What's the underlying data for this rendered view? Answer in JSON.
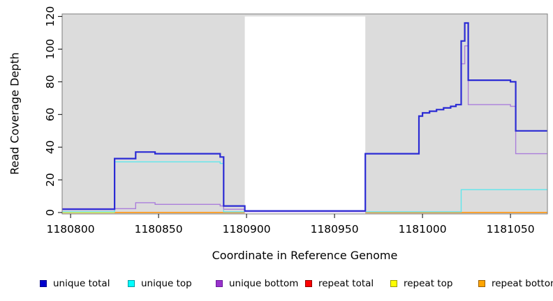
{
  "chart_data": {
    "type": "line",
    "subtype": "step",
    "title": "",
    "xlabel": "Coordinate in Reference Genome",
    "ylabel": "Read Coverage Depth",
    "xlim": [
      1180795.2,
      1181071
    ],
    "ylim": [
      0,
      121.5
    ],
    "x_ticks": [
      1180800,
      1180850,
      1180900,
      1180950,
      1181000,
      1181050
    ],
    "y_ticks": [
      0,
      20,
      40,
      60,
      80,
      100,
      120
    ],
    "grid": "off",
    "panel_bg": "#dcdcdc",
    "masked_region": {
      "x0": 1180899,
      "x1": 1180967.5,
      "y_top": 120,
      "fill": "#ffffff"
    },
    "legend_position": "bottom",
    "series": [
      {
        "name": "repeat total",
        "color": "#e60000",
        "width": 1.2,
        "above_mask": false,
        "steps": [
          [
            1180795.2,
            0
          ]
        ]
      },
      {
        "name": "repeat top",
        "color": "#ffff00",
        "width": 1.2,
        "above_mask": false,
        "steps": [
          [
            1180795.2,
            0
          ]
        ]
      },
      {
        "name": "repeat bottom",
        "color": "#ff9a1a",
        "width": 1.6,
        "above_mask": false,
        "steps": [
          [
            1180825,
            0
          ]
        ]
      },
      {
        "name": "unique top",
        "color": "#5fe6ec",
        "width": 1.4,
        "above_mask": false,
        "steps": [
          [
            1180795.2,
            0.4
          ],
          [
            1180825,
            31
          ],
          [
            1180885,
            30
          ],
          [
            1180887,
            0.4
          ],
          [
            1181022,
            14
          ]
        ]
      },
      {
        "name": "unique bottom",
        "color": "#aa7edb",
        "width": 1.4,
        "above_mask": true,
        "steps": [
          [
            1180795.2,
            2.4
          ],
          [
            1180837,
            6
          ],
          [
            1180848,
            5
          ],
          [
            1180885,
            4
          ],
          [
            1180887,
            2
          ],
          [
            1180899,
            0.5
          ],
          [
            1180967.5,
            36
          ],
          [
            1180998,
            59
          ],
          [
            1181000,
            61
          ],
          [
            1181004,
            62
          ],
          [
            1181008,
            63
          ],
          [
            1181012,
            64
          ],
          [
            1181016,
            65
          ],
          [
            1181019,
            66
          ],
          [
            1181022,
            91
          ],
          [
            1181024,
            102
          ],
          [
            1181026,
            66
          ],
          [
            1181050,
            65
          ],
          [
            1181053,
            36
          ]
        ]
      },
      {
        "name": "unique total",
        "color": "#2b2bd4",
        "width": 2.2,
        "above_mask": true,
        "steps": [
          [
            1180795.2,
            2
          ],
          [
            1180825,
            33
          ],
          [
            1180837,
            37
          ],
          [
            1180848,
            36
          ],
          [
            1180885,
            34
          ],
          [
            1180887,
            4
          ],
          [
            1180899,
            1
          ],
          [
            1180967.5,
            36
          ],
          [
            1180998,
            59
          ],
          [
            1181000,
            61
          ],
          [
            1181004,
            62
          ],
          [
            1181008,
            63
          ],
          [
            1181012,
            64
          ],
          [
            1181016,
            65
          ],
          [
            1181019,
            66
          ],
          [
            1181022,
            105
          ],
          [
            1181024,
            116
          ],
          [
            1181026,
            81
          ],
          [
            1181050,
            80
          ],
          [
            1181053,
            50
          ]
        ]
      }
    ],
    "legend": [
      {
        "label": "unique total",
        "fill": "#0000cd",
        "border": "#00008b"
      },
      {
        "label": "unique top",
        "fill": "#00ffff",
        "border": "#009aa0"
      },
      {
        "label": "unique bottom",
        "fill": "#9932cc",
        "border": "#6a1b9a"
      },
      {
        "label": "repeat total",
        "fill": "#ff0000",
        "border": "#8b0000"
      },
      {
        "label": "repeat top",
        "fill": "#ffff00",
        "border": "#999900"
      },
      {
        "label": "repeat bottom",
        "fill": "#ffa500",
        "border": "#995e00"
      }
    ]
  }
}
